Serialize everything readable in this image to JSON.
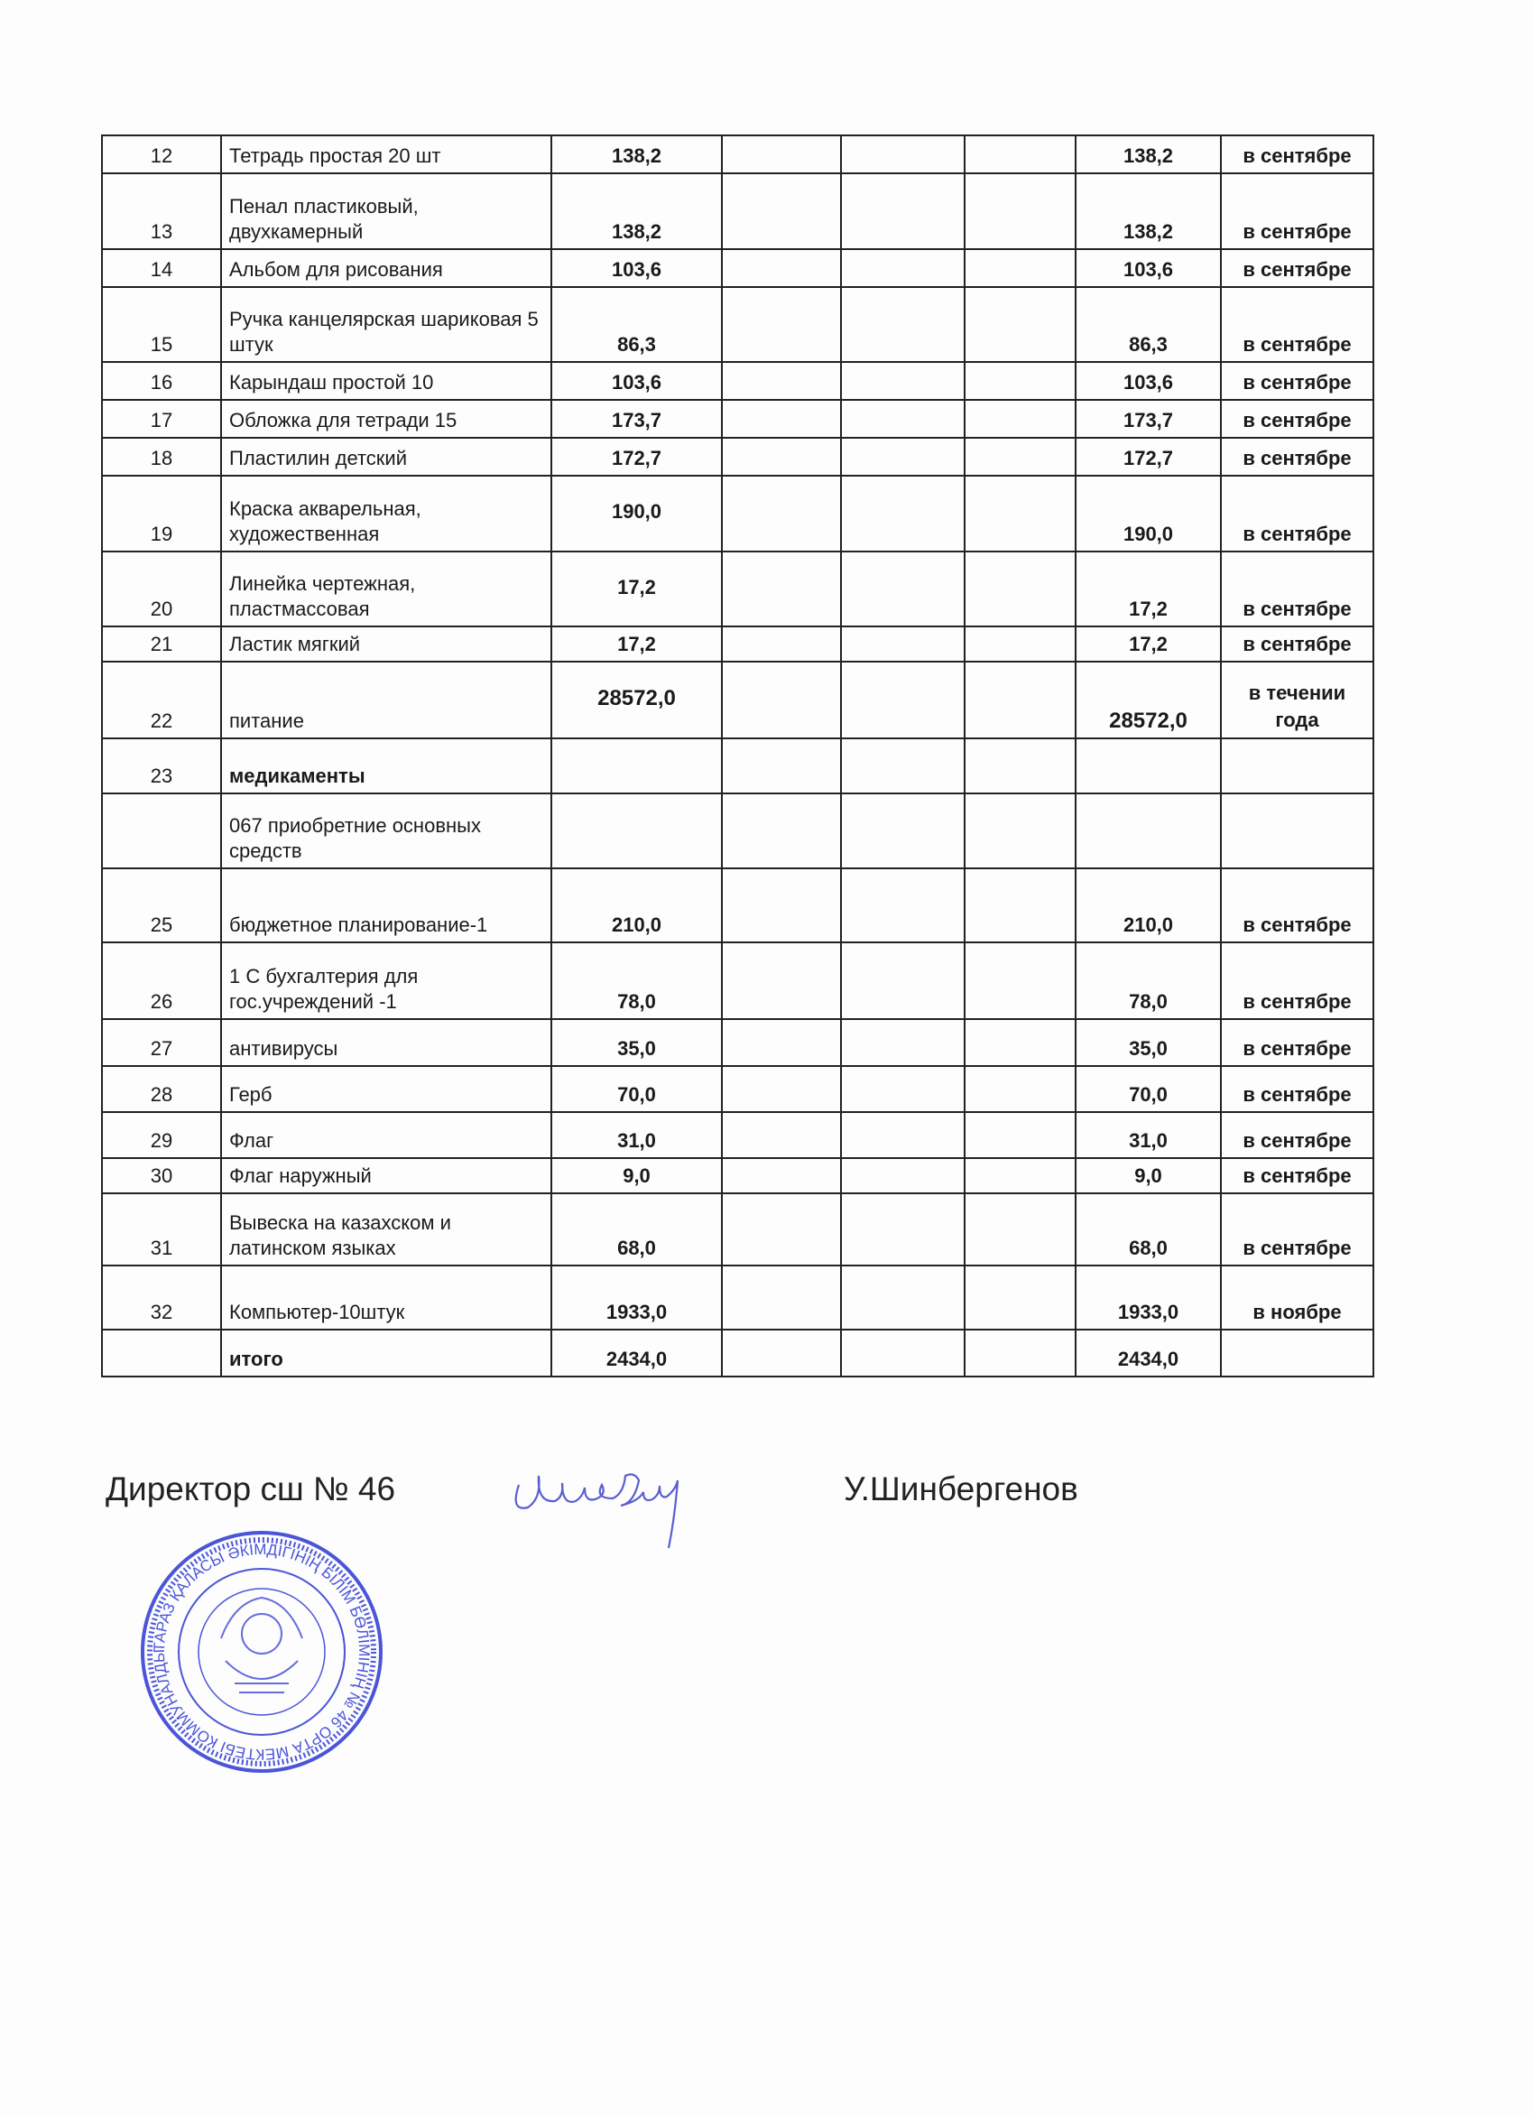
{
  "table": {
    "rows": [
      [
        "12",
        "Тетрадь простая 20 шт",
        "138,2",
        "",
        "",
        "",
        "138,2",
        "в сентябре"
      ],
      [
        "13",
        "Пенал пластиковый, двухкамерный",
        "138,2",
        "",
        "",
        "",
        "138,2",
        "в сентябре"
      ],
      [
        "14",
        "Альбом для рисования",
        "103,6",
        "",
        "",
        "",
        "103,6",
        "в сентябре"
      ],
      [
        "15",
        "Ручка канцелярская шариковая 5 штук",
        "86,3",
        "",
        "",
        "",
        "86,3",
        "в сентябре"
      ],
      [
        "16",
        "Карындаш простой 10",
        "103,6",
        "",
        "",
        "",
        "103,6",
        "в сентябре"
      ],
      [
        "17",
        "Обложка для тетради 15",
        "173,7",
        "",
        "",
        "",
        "173,7",
        "в сентябре"
      ],
      [
        "18",
        "Пластилин детский",
        "172,7",
        "",
        "",
        "",
        "172,7",
        "в сентябре"
      ],
      [
        "19",
        "Краска акварельная, художественная",
        "190,0",
        "",
        "",
        "",
        "190,0",
        "в сентябре"
      ],
      [
        "20",
        "Линейка чертежная, пластмассовая",
        "17,2",
        "",
        "",
        "",
        "17,2",
        "в сентябре"
      ],
      [
        "21",
        "Ластик мягкий",
        "17,2",
        "",
        "",
        "",
        "17,2",
        "в сентябре"
      ],
      [
        "22",
        "питание",
        "28572,0",
        "",
        "",
        "",
        "28572,0",
        "в течении года"
      ],
      [
        "23",
        "медикаменты",
        "",
        "",
        "",
        "",
        "",
        ""
      ],
      [
        "",
        "067 приобретние основных средств",
        "",
        "",
        "",
        "",
        "",
        ""
      ],
      [
        "25",
        "бюджетное планирование-1",
        "210,0",
        "",
        "",
        "",
        "210,0",
        "в сентябре"
      ],
      [
        "26",
        "1 С бухгалтерия для гос.учреждений -1",
        "78,0",
        "",
        "",
        "",
        "78,0",
        "в сентябре"
      ],
      [
        "27",
        "антивирусы",
        "35,0",
        "",
        "",
        "",
        "35,0",
        "в сентябре"
      ],
      [
        "28",
        "Герб",
        "70,0",
        "",
        "",
        "",
        "70,0",
        "в сентябре"
      ],
      [
        "29",
        "Флаг",
        "31,0",
        "",
        "",
        "",
        "31,0",
        "в сентябре"
      ],
      [
        "30",
        "Флаг наружный",
        "9,0",
        "",
        "",
        "",
        "9,0",
        "в сентябре"
      ],
      [
        "31",
        "Вывеска на казахском и латинском языках",
        "68,0",
        "",
        "",
        "",
        "68,0",
        "в сентябре"
      ],
      [
        "32",
        "Компьютер-10штук",
        "1933,0",
        "",
        "",
        "",
        "1933,0",
        "в ноябре"
      ],
      [
        "",
        "итого",
        "2434,0",
        "",
        "",
        "",
        "2434,0",
        ""
      ]
    ]
  },
  "footer": {
    "position": "Директор сш № 46",
    "name": "У.Шинбергенов"
  },
  "stamp": {
    "text": "ТАРАЗ ҚАЛАСЫ ӘКІМДІГІНІҢ БІЛІМ БӨЛІМІНІҢ № 46 ОРТА МЕКТЕБІ КОММУНАЛДЫҚ МЕМЛЕКЕТТІК МЕКЕМЕСІ",
    "color": "#4a55d8"
  },
  "colors": {
    "ink": "#1a1a1a",
    "stamp": "#4a55d8",
    "signature": "#5a5fd0"
  }
}
